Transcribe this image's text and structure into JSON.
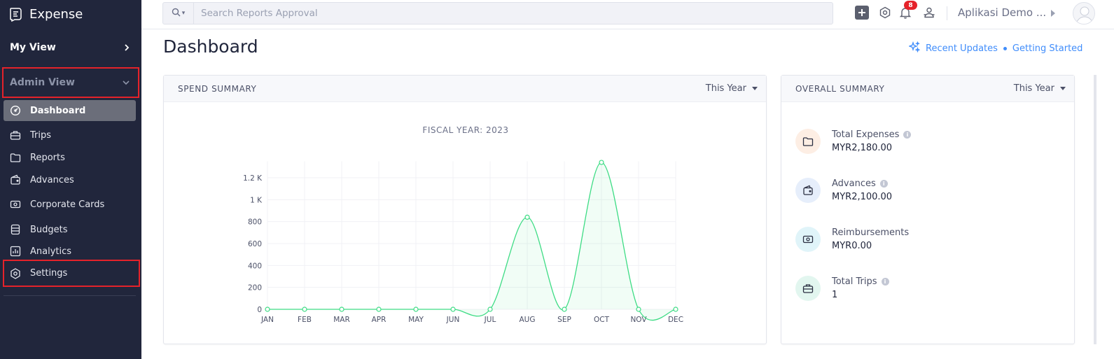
{
  "app": {
    "brand": "Expense"
  },
  "sidebar": {
    "my_view": "My View",
    "admin_view": "Admin View",
    "items": [
      {
        "label": "Dashboard",
        "icon": "dashboard-icon"
      },
      {
        "label": "Trips",
        "icon": "suitcase-icon"
      },
      {
        "label": "Reports",
        "icon": "folder-icon"
      },
      {
        "label": "Advances",
        "icon": "wallet-icon"
      },
      {
        "label": "Corporate Cards",
        "icon": "card-icon"
      },
      {
        "label": "Budgets",
        "icon": "database-icon"
      },
      {
        "label": "Analytics",
        "icon": "analytics-icon"
      },
      {
        "label": "Settings",
        "icon": "gear-icon"
      }
    ]
  },
  "topbar": {
    "search_placeholder": "Search Reports Approval",
    "notification_count": "8",
    "org_name": "Aplikasi Demo ..."
  },
  "header": {
    "title": "Dashboard",
    "recent_updates": "Recent Updates",
    "getting_started": "Getting Started"
  },
  "spend_summary": {
    "title": "SPEND SUMMARY",
    "period": "This Year",
    "chart_title": "FISCAL YEAR: 2023"
  },
  "chart_data": {
    "type": "area",
    "title": "FISCAL YEAR: 2023",
    "categories": [
      "JAN",
      "FEB",
      "MAR",
      "APR",
      "MAY",
      "JUN",
      "JUL",
      "AUG",
      "SEP",
      "OCT",
      "NOV",
      "DEC"
    ],
    "values": [
      0,
      0,
      0,
      0,
      0,
      0,
      0,
      840,
      0,
      1340,
      0,
      0
    ],
    "y_ticks": [
      0,
      200,
      400,
      600,
      800,
      1000,
      1200
    ],
    "y_tick_labels": [
      "0",
      "200",
      "400",
      "600",
      "800",
      "1 K",
      "1.2 K"
    ],
    "ylim": [
      0,
      1350
    ],
    "color": "#3ddc84",
    "grid": true
  },
  "overall_summary": {
    "title": "OVERALL SUMMARY",
    "period": "This Year",
    "items": [
      {
        "label": "Total Expenses",
        "value": "MYR2,180.00",
        "icon": "folder-icon",
        "bg": "#fdeee4"
      },
      {
        "label": "Advances",
        "value": "MYR2,100.00",
        "icon": "wallet-icon",
        "bg": "#e6eefb"
      },
      {
        "label": "Reimbursements",
        "value": "MYR0.00",
        "icon": "cash-icon",
        "bg": "#e0f4f9"
      },
      {
        "label": "Total Trips",
        "value": "1",
        "icon": "suitcase-icon",
        "bg": "#e2f6ef"
      }
    ]
  },
  "colors": {
    "sidebar_bg": "#21263c",
    "accent": "#408dfb",
    "highlight": "#e5222a"
  }
}
